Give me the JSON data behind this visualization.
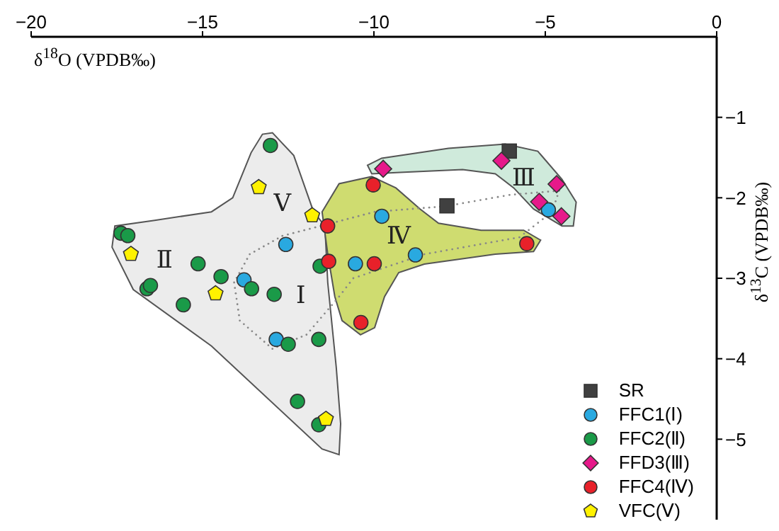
{
  "chart_data": {
    "type": "scatter",
    "xlabel": "δ$^{18}$O (VPDB‰)",
    "ylabel": "δ$^{13}$C (VPDB‰)",
    "xlim": [
      -20,
      0
    ],
    "xticks": [
      -20,
      -15,
      -10,
      -5,
      0
    ],
    "ylim": [
      -6,
      0
    ],
    "yticks": [
      -5,
      -4,
      -3,
      -2,
      -1
    ],
    "grid": false,
    "legend": "bottom right",
    "series": [
      {
        "name": "SR",
        "color": "#404040",
        "marker": "square",
        "x": [
          -6.05,
          -7.87
        ],
        "values": [
          -1.42,
          -2.1
        ]
      },
      {
        "name": "FFC1(Ⅰ)",
        "color": "#29a9e0",
        "marker": "circle",
        "x": [
          -4.91,
          -9.77,
          -8.79,
          -10.54,
          -12.57,
          -13.79,
          -12.85
        ],
        "values": [
          -2.15,
          -2.23,
          -2.71,
          -2.82,
          -2.58,
          -3.02,
          -3.76
        ]
      },
      {
        "name": "FFC2(Ⅱ)",
        "color": "#1a9a48",
        "marker": "circle",
        "x": [
          -13.02,
          -17.38,
          -17.18,
          -15.13,
          -14.46,
          -16.62,
          -16.52,
          -15.56,
          -13.57,
          -12.91,
          -11.57,
          -12.5,
          -11.61,
          -12.23,
          -11.61
        ],
        "values": [
          -1.35,
          -2.44,
          -2.47,
          -2.82,
          -2.98,
          -3.13,
          -3.09,
          -3.33,
          -3.13,
          -3.2,
          -2.85,
          -3.82,
          -3.76,
          -4.53,
          -4.82
        ]
      },
      {
        "name": "FFD3(Ⅲ)",
        "color": "#e6198a",
        "marker": "diamond",
        "x": [
          -9.73,
          -6.28,
          -4.67,
          -5.18,
          -4.53
        ],
        "values": [
          -1.64,
          -1.54,
          -1.83,
          -2.05,
          -2.23
        ]
      },
      {
        "name": "FFC4(Ⅳ)",
        "color": "#e8212a",
        "marker": "circle",
        "x": [
          -10.02,
          -11.35,
          -11.32,
          -9.99,
          -10.38,
          -5.54
        ],
        "values": [
          -1.84,
          -2.35,
          -2.79,
          -2.82,
          -3.55,
          -2.57
        ]
      },
      {
        "name": "VFC(Ⅴ)",
        "color": "#fff200",
        "x": [
          -13.36,
          -11.8,
          -17.09,
          -14.62,
          -11.4
        ],
        "values": [
          -1.87,
          -2.22,
          -2.7,
          -3.19,
          -4.75
        ]
      }
    ],
    "annotations": [
      "Ⅰ",
      "Ⅱ",
      "Ⅲ",
      "Ⅳ",
      "Ⅴ"
    ]
  }
}
